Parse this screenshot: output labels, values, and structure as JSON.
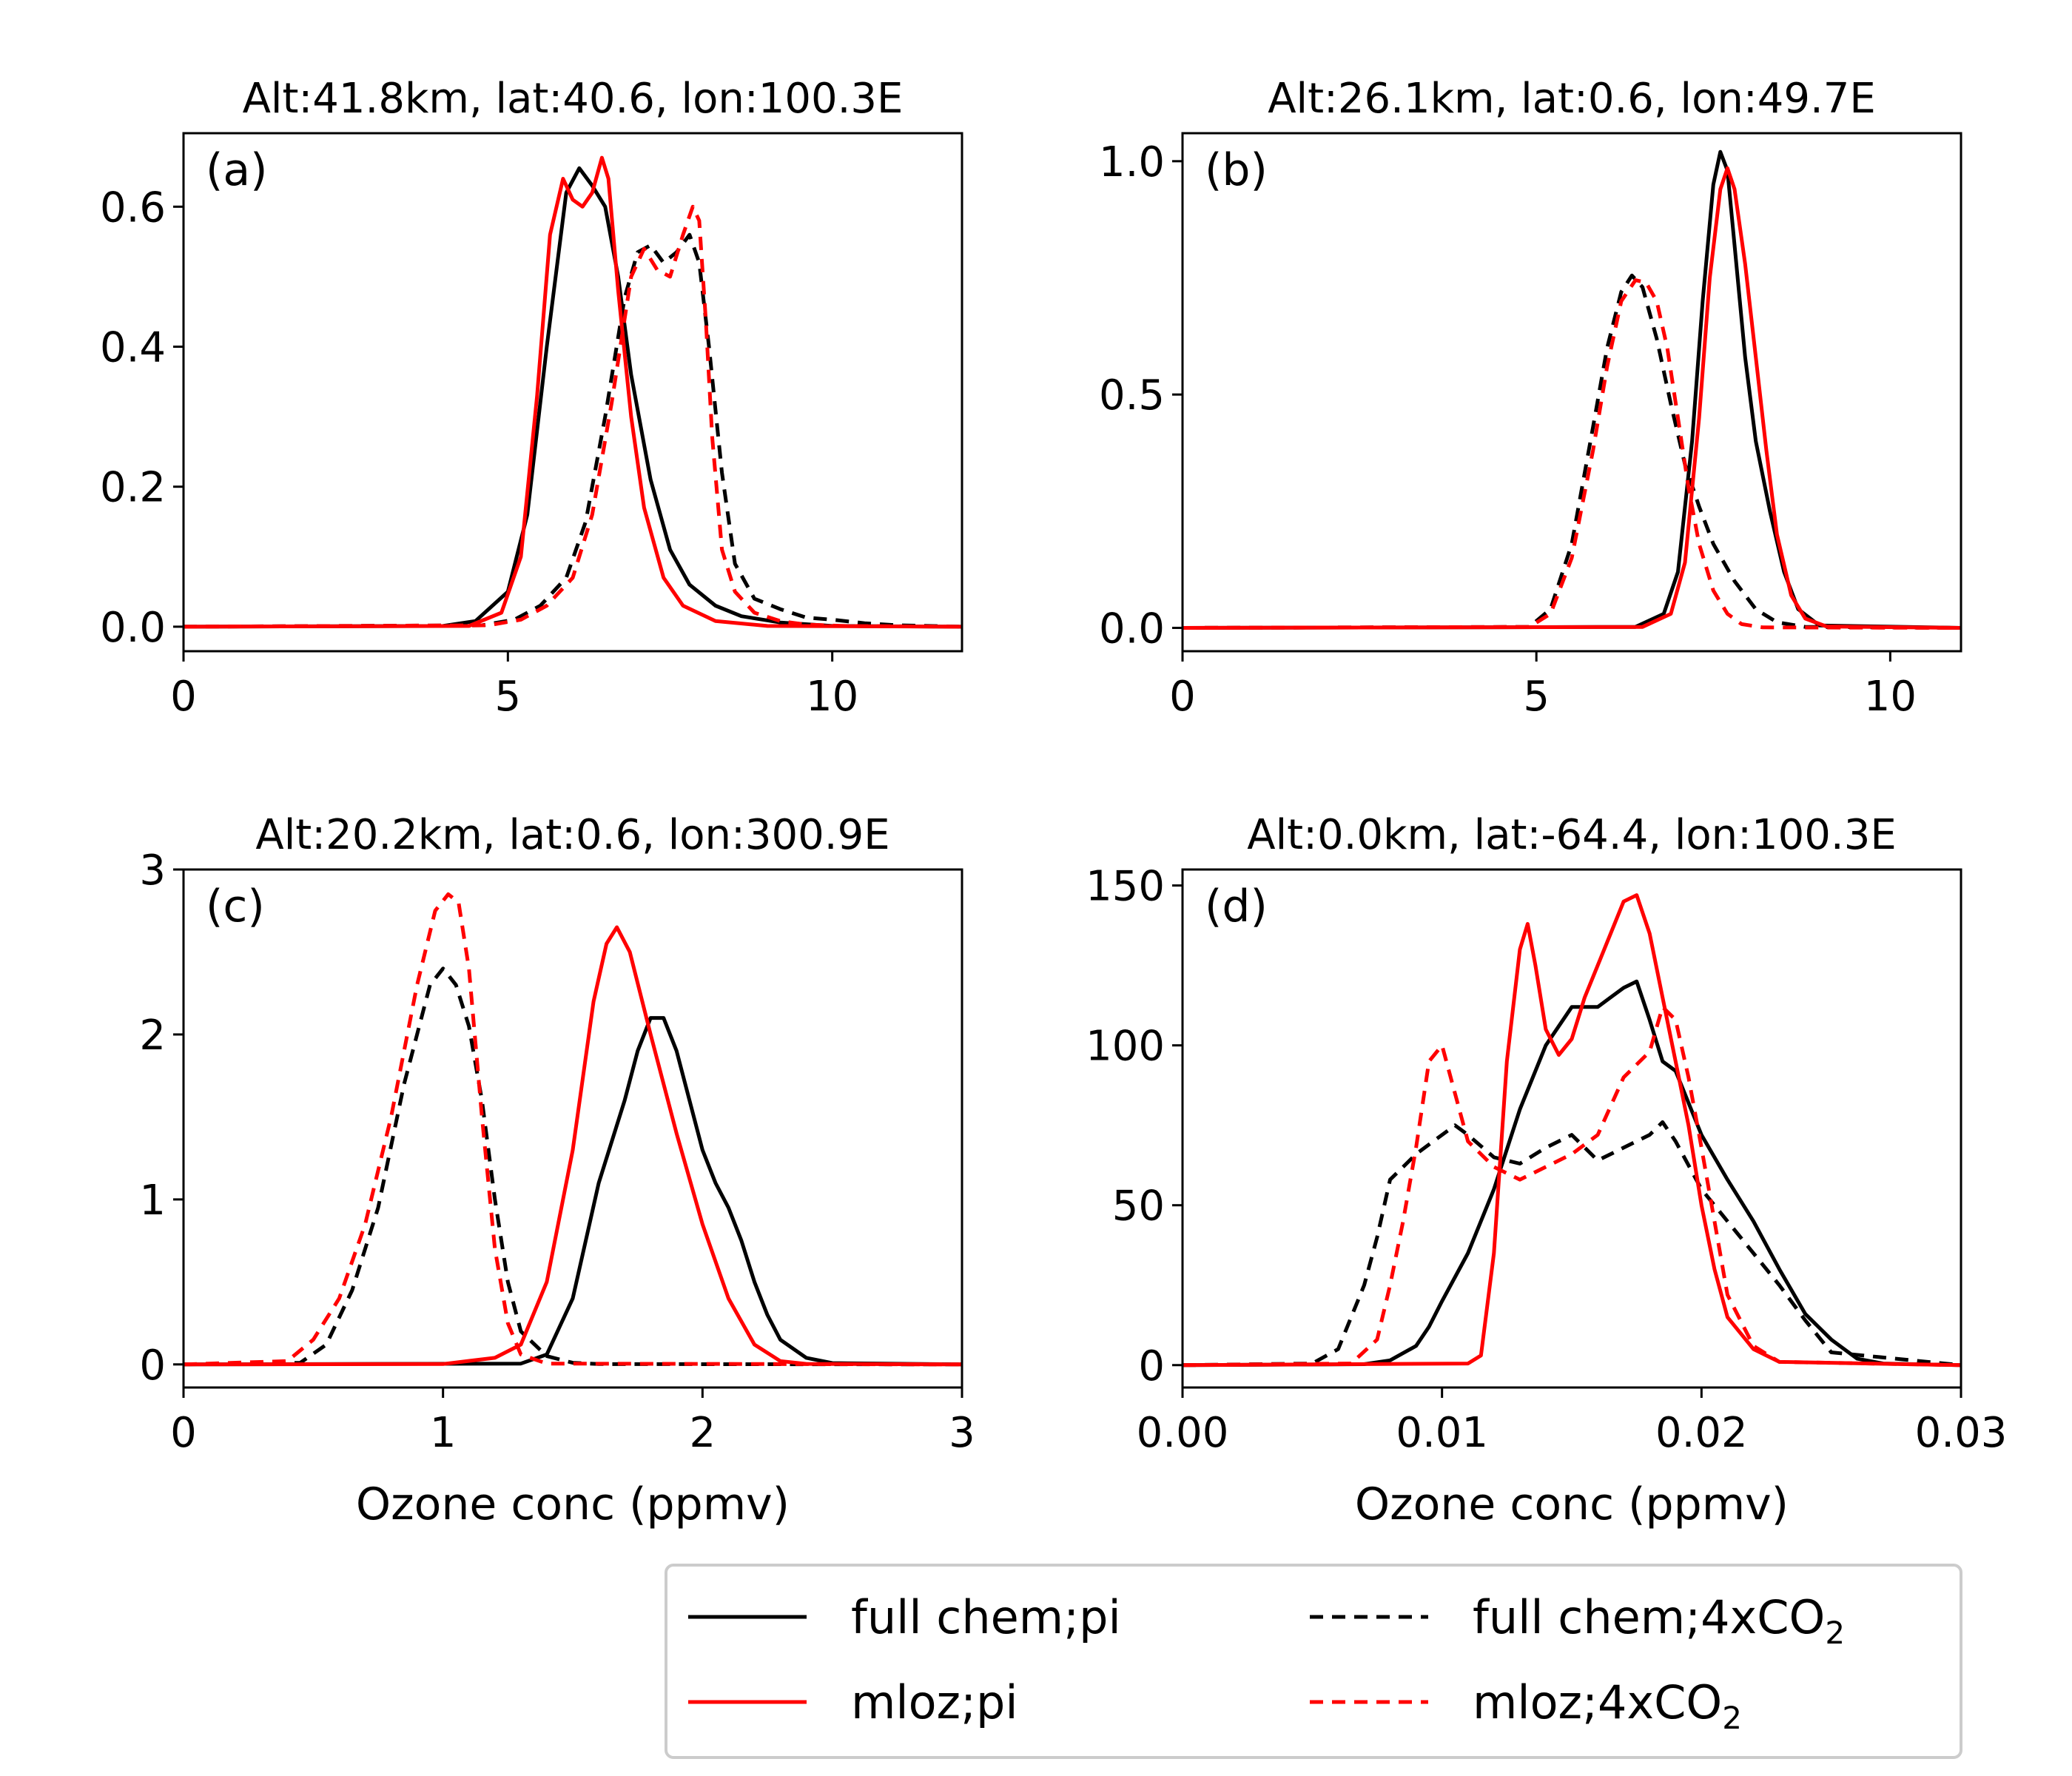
{
  "chart_data": [
    {
      "type": "line",
      "panel_label": "(a)",
      "title": "Alt:41.8km, lat:40.6, lon:100.3E",
      "xlabel": "",
      "ylabel": "",
      "xlim": [
        0,
        12
      ],
      "ylim": [
        -0.035,
        0.705
      ],
      "xticks": [
        0,
        5,
        10
      ],
      "xtick_labels": [
        "0",
        "5",
        "10"
      ],
      "yticks": [
        0.0,
        0.2,
        0.4,
        0.6
      ],
      "ytick_labels": [
        "0.0",
        "0.2",
        "0.4",
        "0.6"
      ],
      "series": [
        {
          "key": "full_pi",
          "x": [
            0,
            4.0,
            4.5,
            5.0,
            5.3,
            5.6,
            5.9,
            6.1,
            6.3,
            6.5,
            6.7,
            6.9,
            7.2,
            7.5,
            7.8,
            8.2,
            8.6,
            9.2,
            10.0,
            12.0
          ],
          "y": [
            0,
            0.001,
            0.008,
            0.05,
            0.16,
            0.4,
            0.62,
            0.655,
            0.63,
            0.6,
            0.5,
            0.36,
            0.21,
            0.11,
            0.06,
            0.03,
            0.015,
            0.006,
            0.001,
            0
          ]
        },
        {
          "key": "mloz_pi",
          "x": [
            0,
            4.4,
            4.9,
            5.2,
            5.45,
            5.65,
            5.85,
            6.0,
            6.15,
            6.3,
            6.45,
            6.55,
            6.7,
            6.9,
            7.1,
            7.4,
            7.7,
            8.2,
            9.0,
            12.0
          ],
          "y": [
            0,
            0.001,
            0.02,
            0.1,
            0.33,
            0.56,
            0.64,
            0.61,
            0.6,
            0.62,
            0.67,
            0.64,
            0.48,
            0.3,
            0.17,
            0.07,
            0.03,
            0.008,
            0.001,
            0
          ]
        },
        {
          "key": "full_4x",
          "x": [
            0,
            4.6,
            5.1,
            5.5,
            5.9,
            6.2,
            6.5,
            6.8,
            7.0,
            7.2,
            7.4,
            7.6,
            7.8,
            7.95,
            8.1,
            8.3,
            8.5,
            8.8,
            9.2,
            9.6,
            10.0,
            10.5,
            11.0,
            12.0
          ],
          "y": [
            0,
            0.002,
            0.01,
            0.03,
            0.07,
            0.15,
            0.3,
            0.47,
            0.535,
            0.545,
            0.52,
            0.535,
            0.56,
            0.52,
            0.4,
            0.22,
            0.09,
            0.04,
            0.025,
            0.013,
            0.01,
            0.005,
            0.002,
            0
          ]
        },
        {
          "key": "mloz_4x",
          "x": [
            0,
            4.7,
            5.2,
            5.6,
            6.0,
            6.3,
            6.6,
            6.9,
            7.1,
            7.3,
            7.5,
            7.7,
            7.85,
            7.95,
            8.05,
            8.15,
            8.3,
            8.5,
            8.8,
            9.2,
            9.6,
            10.2,
            12.0
          ],
          "y": [
            0,
            0.002,
            0.01,
            0.03,
            0.07,
            0.16,
            0.32,
            0.5,
            0.54,
            0.51,
            0.5,
            0.56,
            0.6,
            0.58,
            0.44,
            0.27,
            0.11,
            0.05,
            0.02,
            0.008,
            0.003,
            0.001,
            0
          ]
        }
      ]
    },
    {
      "type": "line",
      "panel_label": "(b)",
      "title": "Alt:26.1km, lat:0.6, lon:49.7E",
      "xlabel": "",
      "ylabel": "",
      "xlim": [
        0,
        11
      ],
      "ylim": [
        -0.05,
        1.06
      ],
      "xticks": [
        0,
        5,
        10
      ],
      "xtick_labels": [
        "0",
        "5",
        "10"
      ],
      "yticks": [
        0.0,
        0.5,
        1.0
      ],
      "ytick_labels": [
        "0.0",
        "0.5",
        "1.0"
      ],
      "series": [
        {
          "key": "full_pi",
          "x": [
            0,
            6.4,
            6.8,
            7.0,
            7.2,
            7.35,
            7.5,
            7.6,
            7.7,
            7.8,
            7.95,
            8.1,
            8.3,
            8.5,
            8.7,
            9.0,
            11.0
          ],
          "y": [
            0,
            0.002,
            0.03,
            0.12,
            0.4,
            0.7,
            0.95,
            1.02,
            0.98,
            0.82,
            0.58,
            0.4,
            0.25,
            0.12,
            0.04,
            0.005,
            0
          ]
        },
        {
          "key": "mloz_pi",
          "x": [
            0,
            6.5,
            6.9,
            7.1,
            7.3,
            7.45,
            7.6,
            7.7,
            7.8,
            7.95,
            8.1,
            8.25,
            8.4,
            8.6,
            8.8,
            9.1,
            11.0
          ],
          "y": [
            0,
            0.002,
            0.03,
            0.14,
            0.45,
            0.75,
            0.94,
            0.985,
            0.94,
            0.78,
            0.58,
            0.38,
            0.2,
            0.07,
            0.02,
            0.003,
            0
          ]
        },
        {
          "key": "full_4x",
          "x": [
            0,
            4.9,
            5.2,
            5.5,
            5.8,
            6.0,
            6.2,
            6.35,
            6.5,
            6.7,
            6.9,
            7.1,
            7.3,
            7.5,
            7.8,
            8.1,
            8.4,
            8.8,
            11.0
          ],
          "y": [
            0,
            0.002,
            0.04,
            0.18,
            0.43,
            0.6,
            0.72,
            0.755,
            0.73,
            0.62,
            0.48,
            0.35,
            0.26,
            0.18,
            0.1,
            0.04,
            0.012,
            0.002,
            0
          ]
        },
        {
          "key": "mloz_4x",
          "x": [
            0,
            4.9,
            5.2,
            5.5,
            5.8,
            6.0,
            6.2,
            6.4,
            6.55,
            6.7,
            6.85,
            7.0,
            7.15,
            7.3,
            7.5,
            7.7,
            7.9,
            8.2,
            11.0
          ],
          "y": [
            0,
            0.002,
            0.03,
            0.15,
            0.38,
            0.56,
            0.7,
            0.745,
            0.74,
            0.7,
            0.6,
            0.45,
            0.3,
            0.18,
            0.08,
            0.03,
            0.008,
            0.001,
            0
          ]
        }
      ]
    },
    {
      "type": "line",
      "panel_label": "(c)",
      "title": "Alt:20.2km, lat:0.6, lon:300.9E",
      "xlabel": "Ozone conc (ppmv)",
      "ylabel": "",
      "xlim": [
        0,
        3
      ],
      "ylim": [
        -0.14,
        3.0
      ],
      "xticks": [
        0,
        1,
        2,
        3
      ],
      "xtick_labels": [
        "0",
        "1",
        "2",
        "3"
      ],
      "yticks": [
        0,
        1,
        2,
        3
      ],
      "ytick_labels": [
        "0",
        "1",
        "2",
        "3"
      ],
      "series": [
        {
          "key": "full_pi",
          "x": [
            0,
            1.3,
            1.4,
            1.5,
            1.6,
            1.7,
            1.75,
            1.8,
            1.85,
            1.9,
            1.95,
            2.0,
            2.05,
            2.1,
            2.15,
            2.2,
            2.25,
            2.3,
            2.4,
            2.5,
            3.0
          ],
          "y": [
            0,
            0.005,
            0.06,
            0.4,
            1.1,
            1.6,
            1.9,
            2.1,
            2.1,
            1.9,
            1.6,
            1.3,
            1.1,
            0.95,
            0.75,
            0.5,
            0.3,
            0.15,
            0.04,
            0.008,
            0
          ]
        },
        {
          "key": "mloz_pi",
          "x": [
            0,
            1.0,
            1.2,
            1.3,
            1.4,
            1.5,
            1.58,
            1.63,
            1.67,
            1.72,
            1.8,
            1.9,
            2.0,
            2.1,
            2.2,
            2.3,
            2.4,
            3.0
          ],
          "y": [
            0,
            0.002,
            0.04,
            0.12,
            0.5,
            1.3,
            2.2,
            2.55,
            2.65,
            2.5,
            2.0,
            1.4,
            0.85,
            0.4,
            0.12,
            0.02,
            0.003,
            0
          ]
        },
        {
          "key": "full_4x",
          "x": [
            0,
            0.45,
            0.55,
            0.65,
            0.75,
            0.85,
            0.95,
            1.0,
            1.05,
            1.1,
            1.15,
            1.2,
            1.25,
            1.3,
            1.4,
            1.5,
            1.6,
            3.0
          ],
          "y": [
            0,
            0.01,
            0.12,
            0.45,
            0.95,
            1.7,
            2.3,
            2.4,
            2.3,
            2.05,
            1.6,
            1.0,
            0.5,
            0.2,
            0.05,
            0.01,
            0.002,
            0
          ]
        },
        {
          "key": "mloz_4x",
          "x": [
            0,
            0.4,
            0.5,
            0.6,
            0.7,
            0.8,
            0.9,
            0.97,
            1.02,
            1.06,
            1.1,
            1.15,
            1.2,
            1.25,
            1.3,
            1.4,
            3.0
          ],
          "y": [
            0,
            0.02,
            0.15,
            0.4,
            0.85,
            1.5,
            2.3,
            2.75,
            2.85,
            2.8,
            2.4,
            1.5,
            0.7,
            0.25,
            0.06,
            0.005,
            0
          ]
        }
      ]
    },
    {
      "type": "line",
      "panel_label": "(d)",
      "title": "Alt:0.0km, lat:-64.4, lon:100.3E",
      "xlabel": "Ozone conc (ppmv)",
      "ylabel": "",
      "xlim": [
        0.0,
        0.03
      ],
      "ylim": [
        -7,
        155
      ],
      "xticks": [
        0.0,
        0.01,
        0.02,
        0.03
      ],
      "xtick_labels": [
        "0.00",
        "0.01",
        "0.02",
        "0.03"
      ],
      "yticks": [
        0,
        50,
        100,
        150
      ],
      "ytick_labels": [
        "0",
        "50",
        "100",
        "150"
      ],
      "series": [
        {
          "key": "full_pi",
          "x": [
            0,
            0.007,
            0.008,
            0.009,
            0.0095,
            0.01,
            0.011,
            0.012,
            0.013,
            0.014,
            0.015,
            0.016,
            0.0165,
            0.017,
            0.0175,
            0.018,
            0.0185,
            0.019,
            0.02,
            0.021,
            0.022,
            0.023,
            0.024,
            0.025,
            0.026,
            0.027,
            0.03
          ],
          "y": [
            0,
            0.3,
            1.5,
            6,
            12,
            20,
            35,
            55,
            80,
            100,
            112,
            112,
            115,
            118,
            120,
            108,
            95,
            92,
            72,
            58,
            45,
            30,
            16,
            8,
            2,
            0.5,
            0
          ]
        },
        {
          "key": "mloz_pi",
          "x": [
            0,
            0.011,
            0.0115,
            0.012,
            0.0125,
            0.013,
            0.0133,
            0.0136,
            0.014,
            0.0145,
            0.015,
            0.0155,
            0.016,
            0.0165,
            0.017,
            0.0175,
            0.018,
            0.0185,
            0.019,
            0.0195,
            0.02,
            0.0205,
            0.021,
            0.022,
            0.023,
            0.03
          ],
          "y": [
            0,
            0.5,
            3,
            35,
            95,
            130,
            138,
            125,
            105,
            97,
            102,
            115,
            125,
            135,
            145,
            147,
            135,
            115,
            95,
            75,
            50,
            30,
            15,
            5,
            1,
            0
          ]
        },
        {
          "key": "full_4x",
          "x": [
            0,
            0.005,
            0.006,
            0.007,
            0.0075,
            0.008,
            0.0085,
            0.009,
            0.01,
            0.0105,
            0.011,
            0.012,
            0.013,
            0.014,
            0.015,
            0.016,
            0.017,
            0.018,
            0.0185,
            0.019,
            0.02,
            0.021,
            0.022,
            0.023,
            0.024,
            0.025,
            0.03
          ],
          "y": [
            0,
            0.5,
            5,
            25,
            40,
            58,
            62,
            66,
            72,
            75,
            72,
            65,
            63,
            68,
            72,
            64,
            68,
            72,
            76,
            70,
            55,
            45,
            35,
            25,
            14,
            4,
            0
          ]
        },
        {
          "key": "mloz_4x",
          "x": [
            0,
            0.0065,
            0.0075,
            0.008,
            0.0085,
            0.009,
            0.0095,
            0.01,
            0.0105,
            0.011,
            0.012,
            0.013,
            0.014,
            0.015,
            0.016,
            0.017,
            0.018,
            0.0185,
            0.019,
            0.0195,
            0.02,
            0.0205,
            0.021,
            0.022,
            0.023,
            0.03
          ],
          "y": [
            0,
            0.5,
            8,
            25,
            45,
            68,
            95,
            100,
            85,
            70,
            62,
            58,
            62,
            66,
            72,
            90,
            98,
            112,
            108,
            90,
            68,
            45,
            22,
            6,
            1,
            0
          ]
        }
      ]
    }
  ],
  "legend": {
    "placement": "lower-right",
    "entries": [
      {
        "key": "full_pi",
        "label": "full chem;pi",
        "sub": ""
      },
      {
        "key": "full_4x",
        "label": "full chem;4xCO",
        "sub": "2"
      },
      {
        "key": "mloz_pi",
        "label": "mloz;pi",
        "sub": ""
      },
      {
        "key": "mloz_4x",
        "label": "mloz;4xCO",
        "sub": "2"
      }
    ]
  },
  "styles": {
    "full_pi": {
      "color": "#000000",
      "dashed": false
    },
    "mloz_pi": {
      "color": "#ff0000",
      "dashed": false
    },
    "full_4x": {
      "color": "#000000",
      "dashed": true
    },
    "mloz_4x": {
      "color": "#ff0000",
      "dashed": true
    }
  }
}
